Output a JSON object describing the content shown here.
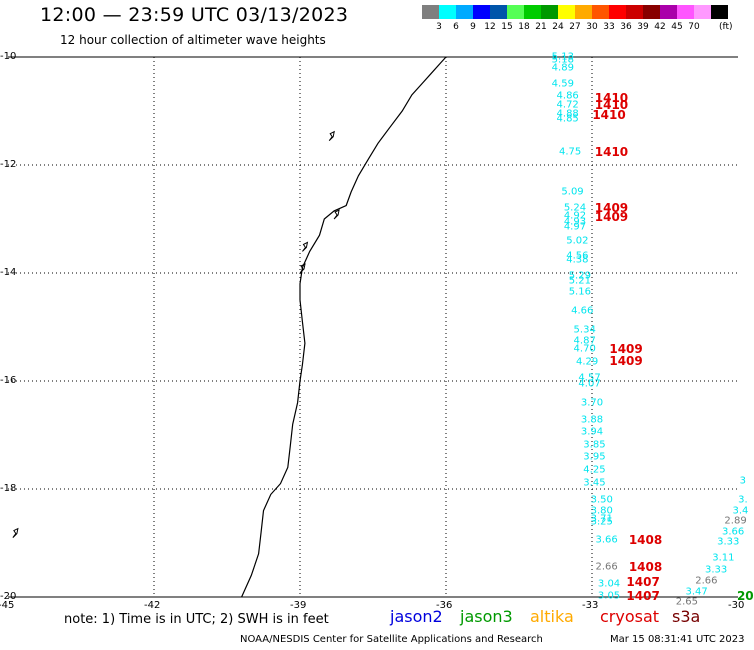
{
  "title": "12:00 — 23:59 UTC 03/13/2023",
  "subtitle": "12 hour collection of altimeter wave heights",
  "color_legend": {
    "colors": [
      "#7f7f7f",
      "#00ffff",
      "#00aaff",
      "#0000ff",
      "#0055aa",
      "#55ff55",
      "#00cc00",
      "#009900",
      "#ffff00",
      "#ffaa00",
      "#ff5500",
      "#ff0000",
      "#cc0000",
      "#880000",
      "#aa00aa",
      "#ff55ff",
      "#ff99ff",
      "#000000"
    ],
    "labels": [
      "3",
      "6",
      "9",
      "12",
      "15",
      "18",
      "21",
      "24",
      "27",
      "30",
      "33",
      "36",
      "39",
      "42",
      "45",
      "70"
    ],
    "unit": "(ft)"
  },
  "map": {
    "lat_labels": [
      "-10",
      "-12",
      "-14",
      "-16",
      "-18",
      "-20"
    ],
    "lon_labels": [
      "-45",
      "-42",
      "-39",
      "-36",
      "-33",
      "-30"
    ],
    "coastline": [
      [
        -36.0,
        -10.0
      ],
      [
        -36.1,
        -10.1
      ],
      [
        -36.3,
        -10.3
      ],
      [
        -36.5,
        -10.5
      ],
      [
        -36.7,
        -10.7
      ],
      [
        -36.9,
        -11.0
      ],
      [
        -37.15,
        -11.3
      ],
      [
        -37.4,
        -11.6
      ],
      [
        -37.6,
        -11.9
      ],
      [
        -37.8,
        -12.2
      ],
      [
        -37.95,
        -12.5
      ],
      [
        -38.05,
        -12.75
      ],
      [
        -38.3,
        -12.85
      ],
      [
        -38.5,
        -13.0
      ],
      [
        -38.6,
        -13.3
      ],
      [
        -38.8,
        -13.6
      ],
      [
        -38.95,
        -13.9
      ],
      [
        -39.0,
        -14.2
      ],
      [
        -39.0,
        -14.5
      ],
      [
        -38.95,
        -14.9
      ],
      [
        -38.9,
        -15.3
      ],
      [
        -38.95,
        -15.7
      ],
      [
        -39.0,
        -16.0
      ],
      [
        -39.05,
        -16.4
      ],
      [
        -39.15,
        -16.8
      ],
      [
        -39.2,
        -17.2
      ],
      [
        -39.25,
        -17.6
      ],
      [
        -39.4,
        -17.9
      ],
      [
        -39.6,
        -18.1
      ],
      [
        -39.75,
        -18.4
      ],
      [
        -39.8,
        -18.8
      ],
      [
        -39.85,
        -19.2
      ],
      [
        -40.0,
        -19.6
      ],
      [
        -40.2,
        -20.0
      ]
    ],
    "passes": [
      {
        "values": [
          {
            "lon": -33.6,
            "lat": -10.0,
            "v": "5.13"
          },
          {
            "lon": -33.6,
            "lat": -10.05,
            "v": "5.18"
          },
          {
            "lon": -33.6,
            "lat": -10.2,
            "v": "4.89"
          },
          {
            "lon": -33.6,
            "lat": -10.5,
            "v": "4.59"
          },
          {
            "lon": -33.5,
            "lat": -10.72,
            "v": "4.86"
          },
          {
            "lon": -33.5,
            "lat": -10.88,
            "v": "4.72"
          },
          {
            "lon": -33.5,
            "lat": -11.05,
            "v": "4.88"
          },
          {
            "lon": -33.5,
            "lat": -11.15,
            "v": "4.85"
          },
          {
            "lon": -33.45,
            "lat": -11.75,
            "v": "4.75"
          },
          {
            "lon": -33.4,
            "lat": -12.5,
            "v": "5.09"
          },
          {
            "lon": -33.35,
            "lat": -12.8,
            "v": "5.24"
          },
          {
            "lon": -33.35,
            "lat": -12.95,
            "v": "4.92"
          },
          {
            "lon": -33.35,
            "lat": -13.05,
            "v": "4.93"
          },
          {
            "lon": -33.35,
            "lat": -13.15,
            "v": "4.97"
          },
          {
            "lon": -33.3,
            "lat": -13.4,
            "v": "5.02"
          },
          {
            "lon": -33.3,
            "lat": -13.68,
            "v": "4.56"
          },
          {
            "lon": -33.3,
            "lat": -13.75,
            "v": "4.38"
          },
          {
            "lon": -33.25,
            "lat": -14.05,
            "v": "5.29"
          },
          {
            "lon": -33.25,
            "lat": -14.15,
            "v": "5.21"
          },
          {
            "lon": -33.25,
            "lat": -14.35,
            "v": "5.16"
          },
          {
            "lon": -33.2,
            "lat": -14.7,
            "v": "4.66"
          },
          {
            "lon": -33.15,
            "lat": -15.05,
            "v": "5.34"
          },
          {
            "lon": -33.15,
            "lat": -15.25,
            "v": "4.87"
          },
          {
            "lon": -33.15,
            "lat": -15.4,
            "v": "4.70"
          },
          {
            "lon": -33.1,
            "lat": -15.65,
            "v": "4.29"
          },
          {
            "lon": -33.05,
            "lat": -15.95,
            "v": "4.57"
          },
          {
            "lon": -33.05,
            "lat": -16.05,
            "v": "4.07"
          },
          {
            "lon": -33.0,
            "lat": -16.4,
            "v": "3.70"
          },
          {
            "lon": -33.0,
            "lat": -16.72,
            "v": "3.88"
          },
          {
            "lon": -33.0,
            "lat": -16.95,
            "v": "3.94"
          },
          {
            "lon": -32.95,
            "lat": -17.18,
            "v": "3.85"
          },
          {
            "lon": -32.95,
            "lat": -17.4,
            "v": "3.95"
          },
          {
            "lon": -32.95,
            "lat": -17.65,
            "v": "4.25"
          },
          {
            "lon": -32.95,
            "lat": -17.88,
            "v": "3.45"
          },
          {
            "lon": -32.8,
            "lat": -18.2,
            "v": "3.50"
          },
          {
            "lon": -32.8,
            "lat": -18.4,
            "v": "3.80"
          },
          {
            "lon": -32.8,
            "lat": -18.55,
            "v": "3.71"
          },
          {
            "lon": -32.8,
            "lat": -18.62,
            "v": "3.25"
          },
          {
            "lon": -32.7,
            "lat": -18.95,
            "v": "3.66"
          },
          {
            "lon": -32.7,
            "lat": -19.45,
            "v": "2.66",
            "grey": true
          },
          {
            "lon": -32.65,
            "lat": -19.75,
            "v": "3.04"
          },
          {
            "lon": -32.65,
            "lat": -19.98,
            "v": "3.05"
          }
        ]
      },
      {
        "values": [
          {
            "lon": -29.9,
            "lat": -17.85,
            "v": "3"
          },
          {
            "lon": -29.9,
            "lat": -18.2,
            "v": "3."
          },
          {
            "lon": -29.95,
            "lat": -18.4,
            "v": "3.4"
          },
          {
            "lon": -30.05,
            "lat": -18.6,
            "v": "2.89",
            "grey": true
          },
          {
            "lon": -30.1,
            "lat": -18.8,
            "v": "3.66"
          },
          {
            "lon": -30.2,
            "lat": -18.98,
            "v": "3.33"
          },
          {
            "lon": -30.3,
            "lat": -19.28,
            "v": "3.11"
          },
          {
            "lon": -30.45,
            "lat": -19.5,
            "v": "3.33"
          },
          {
            "lon": -30.65,
            "lat": -19.7,
            "v": "2.66",
            "grey": true
          },
          {
            "lon": -30.85,
            "lat": -19.9,
            "v": "3.47"
          },
          {
            "lon": -31.05,
            "lat": -20.1,
            "v": "2.65",
            "grey": true
          }
        ]
      }
    ],
    "sat_labels": [
      {
        "lon": -32.6,
        "lat": -10.75,
        "text": "1410",
        "color": "#dd0000"
      },
      {
        "lon": -32.6,
        "lat": -10.88,
        "text": "1410",
        "color": "#dd0000"
      },
      {
        "lon": -32.65,
        "lat": -11.08,
        "text": "1410",
        "color": "#dd0000"
      },
      {
        "lon": -32.6,
        "lat": -11.75,
        "text": "1410",
        "color": "#dd0000"
      },
      {
        "lon": -32.6,
        "lat": -12.8,
        "text": "1409",
        "color": "#dd0000"
      },
      {
        "lon": -32.6,
        "lat": -12.97,
        "text": "1409",
        "color": "#dd0000"
      },
      {
        "lon": -32.3,
        "lat": -15.4,
        "text": "1409",
        "color": "#dd0000"
      },
      {
        "lon": -32.3,
        "lat": -15.63,
        "text": "1409",
        "color": "#dd0000"
      },
      {
        "lon": -31.9,
        "lat": -18.95,
        "text": "1408",
        "color": "#dd0000"
      },
      {
        "lon": -31.9,
        "lat": -19.45,
        "text": "1408",
        "color": "#dd0000"
      },
      {
        "lon": -31.95,
        "lat": -19.73,
        "text": "1407",
        "color": "#dd0000"
      },
      {
        "lon": -31.95,
        "lat": -19.98,
        "text": "1407",
        "color": "#dd0000"
      },
      {
        "lon": -29.85,
        "lat": -19.98,
        "text": "20",
        "color": "#009900"
      }
    ]
  },
  "note": "note:  1) Time is in UTC;  2) SWH is in feet",
  "satellites": [
    {
      "name": "jason2",
      "color": "#0000dd"
    },
    {
      "name": "jason3",
      "color": "#009900"
    },
    {
      "name": "altika",
      "color": "#ffaa00"
    },
    {
      "name": "cryosat",
      "color": "#dd0000"
    },
    {
      "name": "s3a",
      "color": "#770000"
    }
  ],
  "footer_left": "NOAA/NESDIS Center for Satellite Applications and Research",
  "footer_right": "Mar 15 08:31:41 UTC 2023",
  "value_color": "#00e5ee",
  "grey_value_color": "#777777"
}
